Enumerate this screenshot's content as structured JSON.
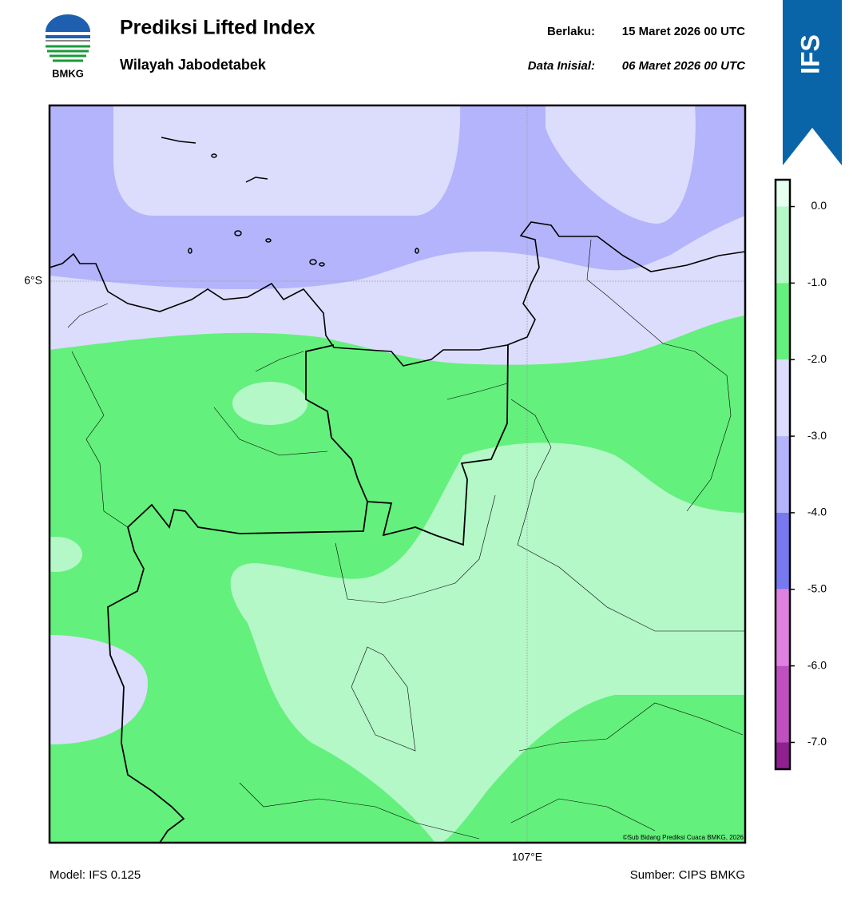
{
  "header": {
    "logo_text": "BMKG",
    "title": "Prediksi Lifted Index",
    "subtitle": "Wilayah Jabodetabek",
    "valid_label": "Berlaku:",
    "valid_value": "15 Maret 2026 00 UTC",
    "init_label": "Data Inisial:",
    "init_value": "06 Maret 2026 00 UTC"
  },
  "badge": "IFS",
  "map": {
    "lat_label": "6°S",
    "lon_label": "107°E",
    "credit": "©Sub Bidang Prediksi Cuaca BMKG, 2026"
  },
  "colorbar": {
    "lim": [
      -7.35,
      0.35
    ],
    "ticks": [
      {
        "value": 0,
        "label": "0.0"
      },
      {
        "value": -1,
        "label": "-1.0"
      },
      {
        "value": -2,
        "label": "-2.0"
      },
      {
        "value": -3,
        "label": "-3.0"
      },
      {
        "value": -4,
        "label": "-4.0"
      },
      {
        "value": -5,
        "label": "-5.0"
      },
      {
        "value": -6,
        "label": "-6.0"
      },
      {
        "value": -7,
        "label": "-7.0"
      }
    ],
    "colors": [
      "#e6fff0",
      "#b4f8c8",
      "#64f07c",
      "#dcdcfc",
      "#b4b4fc",
      "#7878f0",
      "#e080e0",
      "#c050c0",
      "#902090"
    ]
  },
  "footer": {
    "model": "Model: IFS 0.125",
    "source": "Sumber: CIPS BMKG"
  }
}
